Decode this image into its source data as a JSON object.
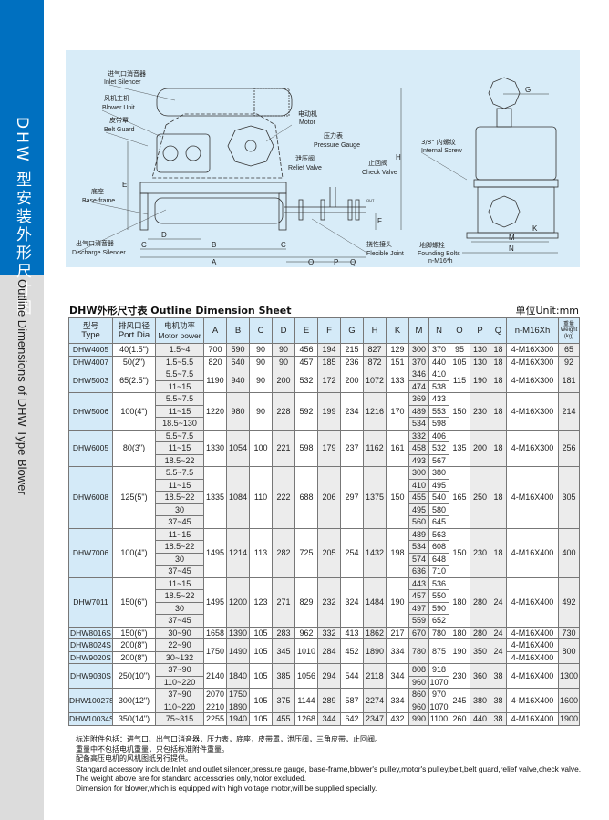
{
  "sidebar": {
    "title_cn": "DHW 型安装外形尺寸图",
    "title_en": "Outline Dimensions of DHW Type Blower",
    "accent_color": "#0070c0",
    "lower_color": "#dcdcdc"
  },
  "drawing": {
    "labels": {
      "inlet_silencer_cn": "进气口消音器",
      "inlet_silencer_en": "Inlet Silencer",
      "blower_unit_cn": "风机主机",
      "blower_unit_en": "Blower Unit",
      "belt_guard_cn": "皮带罩",
      "belt_guard_en": "Belt Guard",
      "motor_cn": "电动机",
      "motor_en": "Motor",
      "pressure_gauge_cn": "压力表",
      "pressure_gauge_en": "Pressure Gauge",
      "relief_valve_cn": "泄压阀",
      "relief_valve_en": "Relief Valve",
      "check_valve_cn": "止回阀",
      "check_valve_en": "Check Valve",
      "base_frame_cn": "底座",
      "base_frame_en": "Base-frame",
      "discharge_silencer_cn": "出气口消音器",
      "discharge_silencer_en": "Discharge Silencer",
      "flexible_joint_cn": "挠性接头",
      "flexible_joint_en": "Flexible Joint",
      "internal_screw_cn": "3/8\" 内螺纹",
      "internal_screw_en": "Internal Screw",
      "founding_bolts_cn": "地脚螺栓",
      "founding_bolts_en": "Founding Bolts",
      "founding_bolts_spec": "n-M16*h",
      "out": "OUT"
    },
    "dims": {
      "A": "A",
      "B": "B",
      "C": "C",
      "D": "D",
      "E": "E",
      "F": "F",
      "H": "H",
      "O": "O",
      "P": "P",
      "Q": "Q",
      "G": "G",
      "K": "K",
      "M": "M",
      "N": "N"
    }
  },
  "sheet": {
    "title": "DHW外形尺寸表 Outline Dimension Sheet",
    "unit": "单位Unit:mm"
  },
  "table": {
    "headers": {
      "type_cn": "型号",
      "type_en": "Type",
      "port_cn": "排风口径",
      "port_en": "Port Dia",
      "motor_cn": "电机功率",
      "motor_en": "Motor power",
      "A": "A",
      "B": "B",
      "C": "C",
      "D": "D",
      "E": "E",
      "F": "F",
      "G": "G",
      "H": "H",
      "K": "K",
      "M": "M",
      "N": "N",
      "O": "O",
      "P": "P",
      "Q": "Q",
      "bolt": "n-M16Xh",
      "weight_cn": "重量",
      "weight_en": "Weight",
      "weight_unit": "(kg)"
    },
    "groups": [
      {
        "type": "DHW4005",
        "port": "40(1.5\")",
        "motor": [
          "1.5~4"
        ],
        "A": "700",
        "B": "590",
        "C": "90",
        "D": "90",
        "E": "456",
        "F": "194",
        "G": "215",
        "H": "827",
        "K": "129",
        "M": "300",
        "N": "370",
        "O": "95",
        "P": "130",
        "Q": "18",
        "bolt": "4-M16X300",
        "weight": "65"
      },
      {
        "type": "DHW4007",
        "port": "50(2\")",
        "motor": [
          "1.5~5.5"
        ],
        "A": "820",
        "B": "640",
        "C": "90",
        "D": "90",
        "E": "457",
        "F": "185",
        "G": "236",
        "H": "872",
        "K": "151",
        "M": "370",
        "N": "440",
        "O": "105",
        "P": "130",
        "Q": "18",
        "bolt": "4-M16X300",
        "weight": "92"
      },
      {
        "type": "DHW5003",
        "port": "65(2.5\")",
        "motor": [
          "5.5~7.5",
          "11~15"
        ],
        "A": "1190",
        "B": "940",
        "C": "90",
        "D": "200",
        "E": "532",
        "F": "172",
        "G": "200",
        "H": "1072",
        "K": "133",
        "M": [
          "346",
          "474"
        ],
        "N": [
          "410",
          "538"
        ],
        "O": "115",
        "P": "190",
        "Q": "18",
        "bolt": "4-M16X300",
        "weight": "181"
      },
      {
        "type": "DHW5006",
        "port": "100(4\")",
        "motor": [
          "5.5~7.5",
          "11~15",
          "18.5~130"
        ],
        "A": "1220",
        "B": "980",
        "C": "90",
        "D": "228",
        "E": "592",
        "F": "199",
        "G": "234",
        "H": "1216",
        "K": "170",
        "M": [
          "369",
          "489",
          "534"
        ],
        "N": [
          "433",
          "553",
          "598"
        ],
        "O": "150",
        "P": "230",
        "Q": "18",
        "bolt": "4-M16X300",
        "weight": "214"
      },
      {
        "type": "DHW6005",
        "port": "80(3\")",
        "motor": [
          "5.5~7.5",
          "11~15",
          "18.5~22"
        ],
        "A": "1330",
        "B": "1054",
        "C": "100",
        "D": "221",
        "E": "598",
        "F": "179",
        "G": "237",
        "H": "1162",
        "K": "161",
        "M": [
          "332",
          "458",
          "493"
        ],
        "N": [
          "406",
          "532",
          "567"
        ],
        "O": "135",
        "P": "200",
        "Q": "18",
        "bolt": "4-M16X300",
        "weight": "256"
      },
      {
        "type": "DHW6008",
        "port": "125(5\")",
        "motor": [
          "5.5~7.5",
          "11~15",
          "18.5~22",
          "30",
          "37~45"
        ],
        "A": "1335",
        "B": "1084",
        "C": "110",
        "D": "222",
        "E": "688",
        "F": "206",
        "G": "297",
        "H": "1375",
        "K": "150",
        "M": [
          "300",
          "410",
          "455",
          "495",
          "560"
        ],
        "N": [
          "380",
          "495",
          "540",
          "580",
          "645"
        ],
        "O": "165",
        "P": "250",
        "Q": "18",
        "bolt": "4-M16X400",
        "weight": "305"
      },
      {
        "type": "DHW7006",
        "port": "100(4\")",
        "motor": [
          "11~15",
          "18.5~22",
          "30",
          "37~45"
        ],
        "A": "1495",
        "B": "1214",
        "C": "113",
        "D": "282",
        "E": "725",
        "F": "205",
        "G": "254",
        "H": "1432",
        "K": "198",
        "M": [
          "489",
          "534",
          "574",
          "636"
        ],
        "N": [
          "563",
          "608",
          "648",
          "710"
        ],
        "O": "150",
        "P": "230",
        "Q": "18",
        "bolt": "4-M16X400",
        "weight": "400"
      },
      {
        "type": "DHW7011",
        "port": "150(6\")",
        "motor": [
          "11~15",
          "18.5~22",
          "30",
          "37~45"
        ],
        "A": "1495",
        "B": "1200",
        "C": "123",
        "D": "271",
        "E": "829",
        "F": "232",
        "G": "324",
        "H": "1484",
        "K": "190",
        "M": [
          "443",
          "457",
          "497",
          "559"
        ],
        "N": [
          "536",
          "550",
          "590",
          "652"
        ],
        "O": "180",
        "P": "280",
        "Q": "24",
        "bolt": "4-M16X400",
        "weight": "492"
      },
      {
        "type": "DHW8016S",
        "port": "150(6\")",
        "motor": [
          "30~90"
        ],
        "A": "1658",
        "B": "1390",
        "C": "105",
        "D": "283",
        "E": "962",
        "F": "332",
        "G": "413",
        "H": "1862",
        "K": "217",
        "M": "670",
        "N": "780",
        "O": "180",
        "P": "280",
        "Q": "24",
        "bolt": "4-M16X400",
        "weight": "730"
      },
      {
        "type": [
          "DHW8024S",
          "DHW9020S"
        ],
        "port": [
          "200(8\")",
          "200(8\")"
        ],
        "motor": [
          "22~90",
          "30~132"
        ],
        "A": "1750",
        "B": "1490",
        "C": "105",
        "D": "345",
        "E": "1010",
        "F": "284",
        "G": "452",
        "H": "1890",
        "K": "334",
        "M": "780",
        "N": "875",
        "O": "190",
        "P": "350",
        "Q": "24",
        "bolt": [
          "4-M16X400",
          "4-M16X400"
        ],
        "weight": "800"
      },
      {
        "type": "DHW9030S",
        "port": "250(10\")",
        "motor": [
          "37~90",
          "110~220"
        ],
        "A": "2140",
        "B": "1840",
        "C": "105",
        "D": "385",
        "E": "1056",
        "F": "294",
        "G": "544",
        "H": "2118",
        "K": "344",
        "M": [
          "808",
          "960"
        ],
        "N": [
          "918",
          "1070"
        ],
        "O": "230",
        "P": "360",
        "Q": "38",
        "bolt": "4-M16X400",
        "weight": "1300"
      },
      {
        "type": "DHW10027S",
        "port": "300(12\")",
        "motor": [
          "37~90",
          "110~220"
        ],
        "A": [
          "2070",
          "2210"
        ],
        "B": [
          "1750",
          "1890"
        ],
        "C": "105",
        "D": "375",
        "E": "1144",
        "F": "289",
        "G": "587",
        "H": "2274",
        "K": "334",
        "M": [
          "860",
          "960"
        ],
        "N": [
          "970",
          "1070"
        ],
        "O": "245",
        "P": "380",
        "Q": "38",
        "bolt": "4-M16X400",
        "weight": "1600"
      },
      {
        "type": "DHW10034S",
        "port": "350(14\")",
        "motor": [
          "75~315"
        ],
        "A": "2255",
        "B": "1940",
        "C": "105",
        "D": "455",
        "E": "1268",
        "F": "344",
        "G": "642",
        "H": "2347",
        "K": "432",
        "M": "990",
        "N": "1100",
        "O": "260",
        "P": "440",
        "Q": "38",
        "bolt": "4-M16X400",
        "weight": "1900"
      }
    ]
  },
  "notes": {
    "cn": [
      "标准附件包括：进气口、出气口消音器，压力表，底座，皮带罩，泄压阀，三角皮带，止回阀。",
      "重量中不包括电机重量，只包括标准附件重量。",
      "配备高压电机的风机图纸另行提供。"
    ],
    "en": [
      "Stangard accessory include:Inlet and outlet silencer,pressure gauge, base-frame,blower's pulley,motor's pulley,belt,belt guard,relief valve,check valve.",
      "The weight above are for standard accessories only,motor excluded.",
      "Dimension for blower,which is equipped with high voltage motor,will be supplied specially."
    ]
  }
}
